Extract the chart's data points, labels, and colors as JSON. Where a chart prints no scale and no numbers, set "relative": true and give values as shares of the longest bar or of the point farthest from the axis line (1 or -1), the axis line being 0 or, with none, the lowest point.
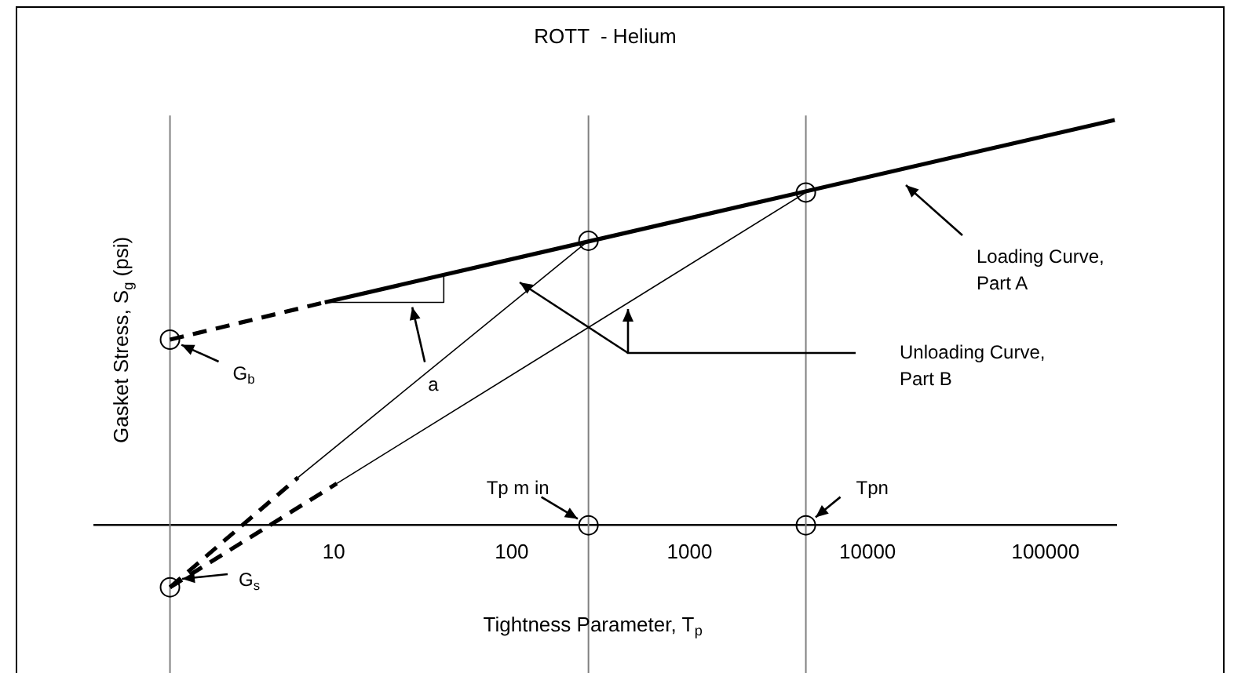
{
  "chart_data": {
    "type": "line",
    "title": "ROTT  - Helium",
    "xlabel": "Tightness Parameter, T$_{p}$",
    "ylabel": "Gasket Stress, S$_{g}$ (psi)",
    "relative": true,
    "log": "x",
    "tick_labels": "x",
    "xlim": [
      0.45,
      250000
    ],
    "xticks": [
      10,
      100,
      1000,
      10000,
      100000
    ],
    "series": [
      {
        "type": "line",
        "color": "#000000",
        "x": [
          8.9,
          245000
        ],
        "values": [
          0.55,
          1
        ]
      },
      {
        "type": "line",
        "color": "#000000",
        "line_style": "dashed",
        "x": [
          1.2,
          8.9
        ],
        "values": [
          0.458,
          0.55
        ]
      },
      {
        "type": "line",
        "color": "#000000",
        "line_style": "dashed",
        "x": [
          1.2,
          6.3
        ],
        "values": [
          -0.153,
          0.118
        ]
      },
      {
        "type": "line",
        "color": "#000000",
        "x": [
          6.3,
          270
        ],
        "values": [
          0.118,
          0.702
        ]
      },
      {
        "type": "line",
        "color": "#000000",
        "line_style": "dashed",
        "x": [
          1.2,
          10.4
        ],
        "values": [
          -0.153,
          0.103
        ]
      },
      {
        "type": "line",
        "color": "#000000",
        "x": [
          10.4,
          4500
        ],
        "values": [
          0.103,
          0.821
        ]
      },
      {
        "type": "line",
        "color": "#000000",
        "x": [
          8.9,
          41.5,
          41.5
        ],
        "values": [
          0.55,
          0.55,
          0.622
        ]
      },
      {
        "type": "scatter",
        "color": "#000000",
        "marker": "circle",
        "x": [
          1.2,
          1.2,
          270,
          4500,
          270,
          4500
        ],
        "values": [
          0.458,
          -0.153,
          0.702,
          0.821,
          0,
          0
        ]
      }
    ],
    "ref_lines": [
      {
        "axis": "x",
        "value": 1.2,
        "color": "#808080"
      },
      {
        "axis": "x",
        "value": 270,
        "color": "#808080"
      },
      {
        "axis": "x",
        "value": 4500,
        "color": "#808080"
      }
    ],
    "annotations": [
      {
        "text": "G$_{b}$",
        "x": 1.2,
        "y": 0.458
      },
      "G$_{s}$",
      {
        "text": "Tp m in",
        "x": 270,
        "y": 0
      },
      {
        "text": "Tpn",
        "x": 4500,
        "y": 0
      },
      {
        "text": "a",
        "x": 27.6,
        "y": 0.538
      },
      "Loading Curve,\nPart A",
      "Unloading Curve,\nPart B"
    ]
  }
}
